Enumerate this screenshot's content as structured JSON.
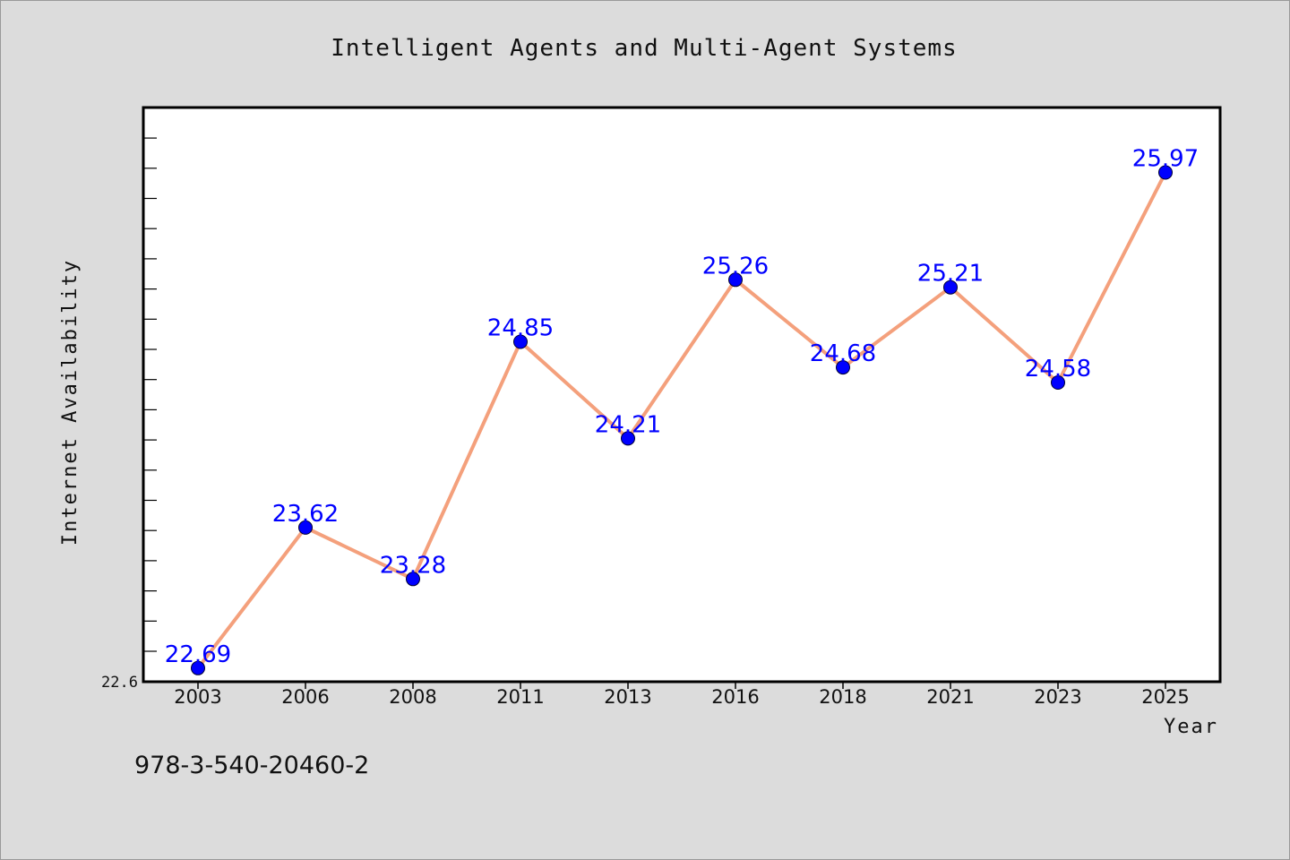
{
  "colors": {
    "background": "#dcdcdc",
    "plot_background": "#ffffff",
    "line": "#f4a07c",
    "marker": "#0000ff",
    "data_label": "#0000ff",
    "axis": "#000000"
  },
  "footer": {
    "isbn": "978-3-540-20460-2"
  },
  "chart_data": {
    "type": "line",
    "title": "Intelligent Agents and Multi-Agent Systems",
    "xlabel": "Year",
    "ylabel": "Internet Availability",
    "categories": [
      "2003",
      "2006",
      "2008",
      "2011",
      "2013",
      "2016",
      "2018",
      "2021",
      "2023",
      "2025"
    ],
    "series": [
      {
        "values": [
          22.69,
          23.62,
          23.28,
          24.85,
          24.21,
          25.26,
          24.68,
          25.21,
          24.58,
          25.97
        ]
      }
    ],
    "y_tick_labels": [
      "22.6"
    ],
    "ylim": [
      22.6,
      26.4
    ],
    "grid": false,
    "legend": "none",
    "marker": "circle"
  }
}
